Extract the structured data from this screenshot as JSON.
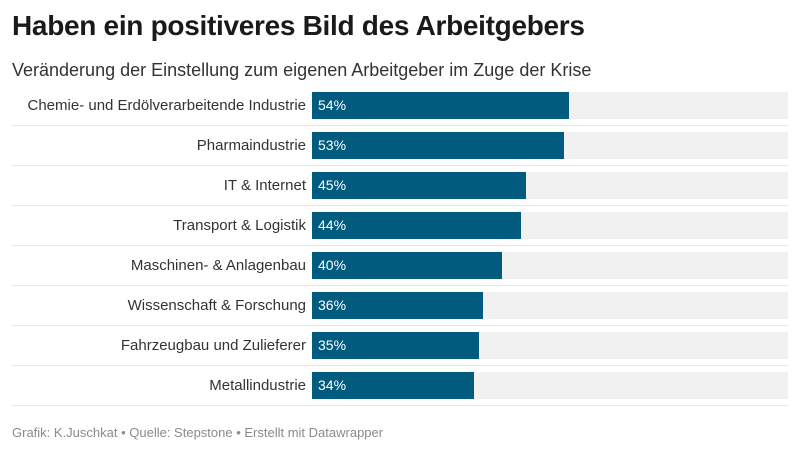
{
  "chart_data": {
    "type": "bar",
    "orientation": "horizontal",
    "title": "Haben ein positiveres Bild des Arbeitgebers",
    "subtitle": "Veränderung der Einstellung zum eigenen Arbeitgeber im Zuge der Krise",
    "categories": [
      "Chemie- und Erdölverarbeitende Industrie",
      "Pharmaindustrie",
      "IT & Internet",
      "Transport & Logistik",
      "Maschinen- & Anlagenbau",
      "Wissenschaft & Forschung",
      "Fahrzeugbau und Zulieferer",
      "Metallindustrie"
    ],
    "values": [
      54,
      53,
      45,
      44,
      40,
      36,
      35,
      34
    ],
    "value_labels": [
      "54%",
      "53%",
      "45%",
      "44%",
      "40%",
      "36%",
      "35%",
      "34%"
    ],
    "unit": "%",
    "xlim": [
      0,
      100
    ],
    "xlabel": "",
    "ylabel": "",
    "grid": false,
    "bar_color": "#005b7f",
    "track_color": "#f1f1f1",
    "footer": "Grafik: K.Juschkat • Quelle: Stepstone • Erstellt mit Datawrapper"
  }
}
